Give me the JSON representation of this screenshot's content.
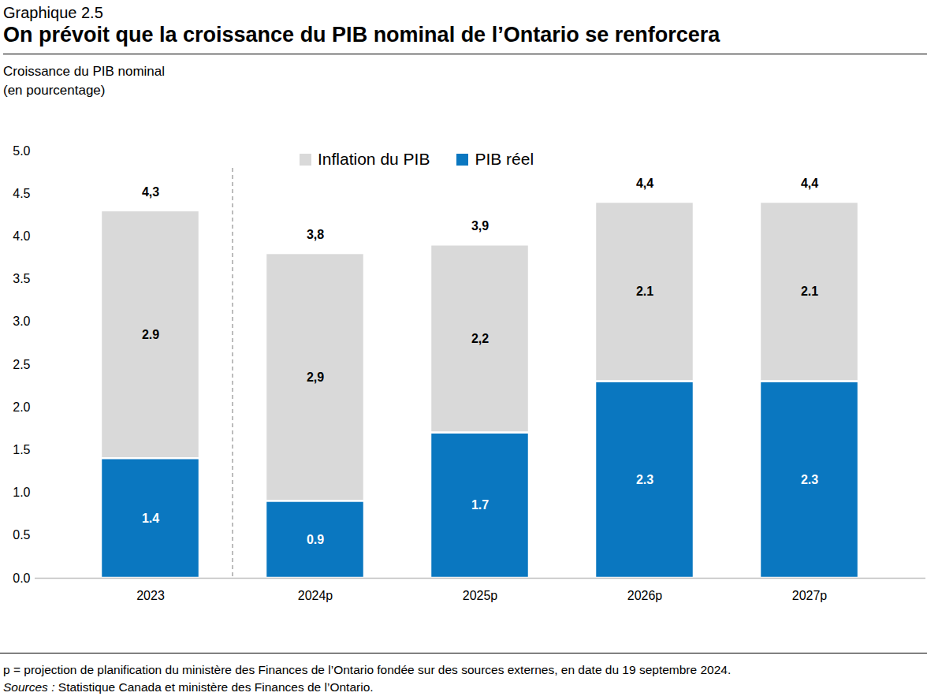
{
  "chart_data": {
    "type": "bar",
    "title": "Graphique 2.5",
    "subtitle": "On prévoit que la croissance du PIB nominal de l’Ontario se renforcera",
    "y_label": "Croissance du PIB  nominal\n(en pourcentage)",
    "categories": [
      "2023",
      "2024p",
      "2025p",
      "2026p",
      "2027p"
    ],
    "series": [
      {
        "name": "Inflation du PIB",
        "color": "#d9d9d9",
        "values": [
          2.9,
          2.9,
          2.2,
          2.1,
          2.1
        ],
        "value_labels": [
          "2.9",
          "2,9",
          "2,2",
          "2.1",
          "2.1"
        ]
      },
      {
        "name": "PIB réel",
        "color": "#0a77c0",
        "values": [
          1.4,
          0.9,
          1.7,
          2.3,
          2.3
        ]
      }
    ],
    "totals": [
      4.3,
      3.8,
      3.9,
      4.4,
      4.4
    ],
    "total_labels": [
      "4,3",
      "3,8",
      "3,9",
      "4,4",
      "4,4"
    ],
    "stacked": true,
    "data_labels": true,
    "grid": false,
    "legend": "top",
    "ylim": [
      0,
      5
    ],
    "yticks": [
      {
        "value": 0,
        "label": "0.0"
      },
      {
        "value": 0.5,
        "label": "0.5"
      },
      {
        "value": 1,
        "label": "1.0"
      },
      {
        "value": 1.5,
        "label": "1.5"
      },
      {
        "value": 2,
        "label": "2.0"
      },
      {
        "value": 2.5,
        "label": "2.5"
      },
      {
        "value": 3,
        "label": "3.0"
      },
      {
        "value": 3.5,
        "label": "3.5"
      },
      {
        "value": 4,
        "label": "4.0"
      },
      {
        "value": 4.5,
        "label": "4.5"
      },
      {
        "value": 5,
        "label": "5.0"
      }
    ],
    "note": "p = projection de planification du ministère des Finances de l’Ontario fondée sur des sources externes, en date du 19 septembre 2024.",
    "source_label": "Sources :",
    "source_text": " Statistique Canada et ministère des Finances de l’Ontario."
  }
}
